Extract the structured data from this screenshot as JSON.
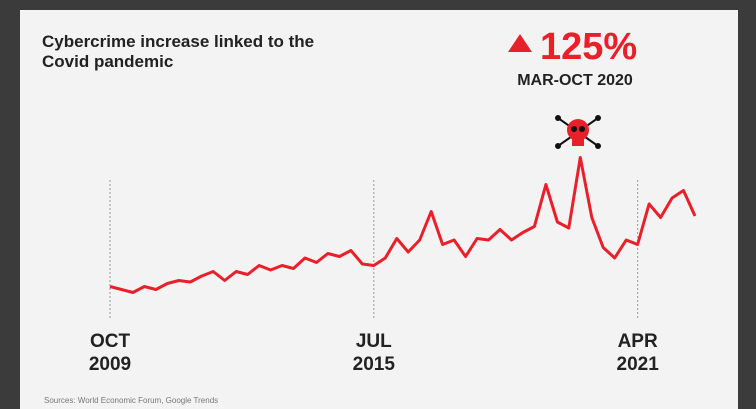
{
  "chart_data": {
    "type": "line",
    "title": "Cybercrime increase linked to the Covid pandemic",
    "annotation": {
      "value": "125%",
      "label": "MAR-OCT 2020"
    },
    "source": "Sources: World Economic Forum, Google Trends",
    "x": [
      "2009-10",
      "2010-01",
      "2010-04",
      "2010-07",
      "2010-10",
      "2011-01",
      "2011-04",
      "2011-07",
      "2011-10",
      "2012-01",
      "2012-04",
      "2012-07",
      "2012-10",
      "2013-01",
      "2013-04",
      "2013-07",
      "2013-10",
      "2014-01",
      "2014-04",
      "2014-07",
      "2014-10",
      "2015-01",
      "2015-04",
      "2015-07",
      "2015-10",
      "2016-01",
      "2016-04",
      "2016-07",
      "2016-10",
      "2017-01",
      "2017-04",
      "2017-07",
      "2017-10",
      "2018-01",
      "2018-04",
      "2018-07",
      "2018-10",
      "2019-01",
      "2019-04",
      "2019-07",
      "2019-10",
      "2020-01",
      "2020-04",
      "2020-07",
      "2020-10",
      "2021-01",
      "2021-04",
      "2021-07",
      "2021-10",
      "2022-01",
      "2022-04",
      "2022-07"
    ],
    "series": [
      {
        "color": "#e8202a",
        "values": [
          9,
          7,
          5,
          9,
          7,
          11,
          13,
          12,
          16,
          19,
          13,
          19,
          17,
          23,
          20,
          23,
          21,
          28,
          25,
          31,
          29,
          33,
          24,
          23,
          28,
          41,
          32,
          40,
          59,
          37,
          40,
          29,
          41,
          40,
          47,
          40,
          45,
          49,
          77,
          52,
          48,
          95,
          55,
          35,
          28,
          40,
          37,
          64,
          55,
          68,
          73,
          56
        ]
      }
    ],
    "xlim": [
      "2009-10",
      "2022-07"
    ],
    "xticks": [
      {
        "value": "2009-10",
        "label": "OCT 2009"
      },
      {
        "value": "2015-07",
        "label": "JUL 2015"
      },
      {
        "value": "2021-04",
        "label": "APR 2021"
      }
    ],
    "ylim": [
      0,
      100
    ]
  }
}
